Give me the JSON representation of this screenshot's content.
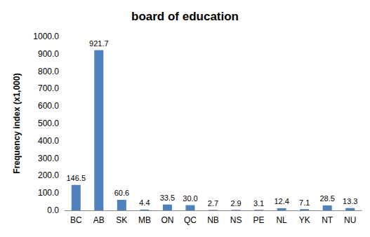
{
  "chart_data": {
    "type": "bar",
    "title": "board of education",
    "y_label": "Frequency index (x1,000)",
    "categories": [
      "BC",
      "AB",
      "SK",
      "MB",
      "ON",
      "QC",
      "NB",
      "NS",
      "PE",
      "NL",
      "YK",
      "NT",
      "NU"
    ],
    "values": [
      146.5,
      921.7,
      60.6,
      4.4,
      33.5,
      30.0,
      2.7,
      2.9,
      3.1,
      12.4,
      7.1,
      28.5,
      13.3
    ],
    "value_labels": [
      "146.5",
      "921.7",
      "60.6",
      "4.4",
      "33.5",
      "30.0",
      "2.7",
      "2.9",
      "3.1",
      "12.4",
      "7.1",
      "28.5",
      "13.3"
    ],
    "data_labels": true,
    "color": "#4f81bd",
    "ylim": [
      0,
      1000
    ],
    "yticks": [
      {
        "value": 0,
        "label": "0.0"
      },
      {
        "value": 100,
        "label": "100.0"
      },
      {
        "value": 200,
        "label": "200.0"
      },
      {
        "value": 300,
        "label": "300.0"
      },
      {
        "value": 400,
        "label": "400.0"
      },
      {
        "value": 500,
        "label": "500.0"
      },
      {
        "value": 600,
        "label": "600.0"
      },
      {
        "value": 700,
        "label": "700.0"
      },
      {
        "value": 800,
        "label": "800.0"
      },
      {
        "value": 900,
        "label": "900.0"
      },
      {
        "value": 1000,
        "label": "1000.0"
      }
    ],
    "grid": false
  }
}
